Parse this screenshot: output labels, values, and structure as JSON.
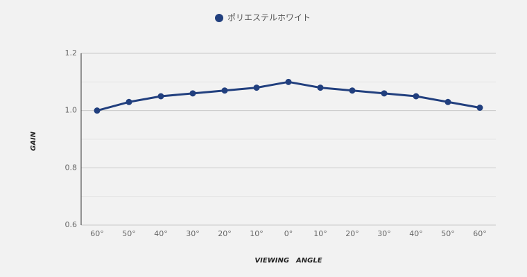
{
  "chart_data": {
    "type": "line",
    "categories": [
      "60°",
      "50°",
      "40°",
      "30°",
      "20°",
      "10°",
      "0°",
      "10°",
      "20°",
      "30°",
      "40°",
      "50°",
      "60°"
    ],
    "series": [
      {
        "name": "ポリエステルホワイト",
        "color": "#213f7e",
        "values": [
          1.0,
          1.03,
          1.05,
          1.06,
          1.07,
          1.08,
          1.1,
          1.08,
          1.07,
          1.06,
          1.05,
          1.03,
          1.01
        ]
      }
    ],
    "ylim": [
      0.6,
      1.2
    ],
    "yticks": [
      0.6,
      0.8,
      {
        "value": 1,
        "label": "1.0"
      },
      1.2
    ],
    "minor_yticks": [
      0.7,
      0.9,
      1.1
    ],
    "grid": true,
    "legend": "top",
    "x_label": "VIEWING　ANGLE",
    "y_label": "GAIN"
  }
}
